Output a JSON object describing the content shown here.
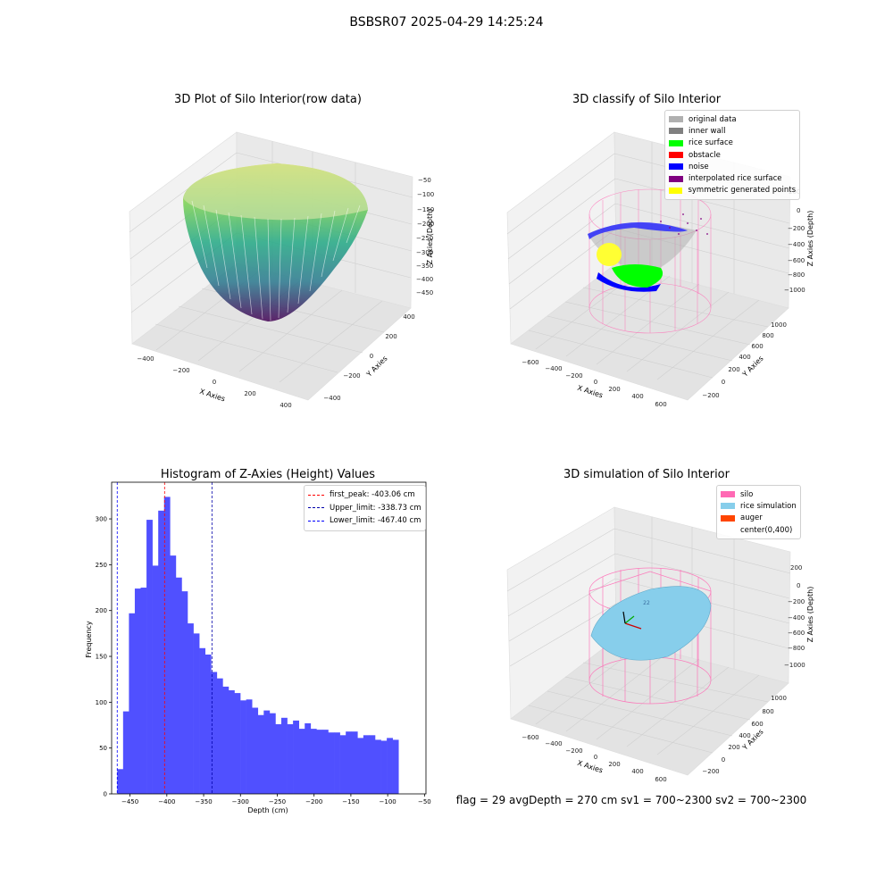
{
  "suptitle": "BSBSR07 2025-04-29 14:25:24",
  "panels": {
    "raw": {
      "title": "3D Plot of Silo Interior(row data)",
      "xlabel": "X Axies",
      "ylabel": "Y Axies",
      "zlabel": "Z Axies (Depth)",
      "xticks": [
        "−400",
        "−200",
        "0",
        "200",
        "400"
      ],
      "yticks": [
        "400",
        "200",
        "0",
        "−200",
        "−400"
      ],
      "zticks": [
        "−50",
        "−100",
        "−150",
        "−200",
        "−250",
        "−300",
        "−350",
        "−400",
        "−450"
      ]
    },
    "classify": {
      "title": "3D classify of Silo Interior",
      "xlabel": "X Axies",
      "ylabel": "Y Axies",
      "zlabel": "Z Axies (Depth)",
      "xticks": [
        "−600",
        "−400",
        "−200",
        "0",
        "200",
        "400",
        "600"
      ],
      "yticks": [
        "1000",
        "800",
        "600",
        "400",
        "200",
        "0",
        "−200"
      ],
      "zticks": [
        "200",
        "0",
        "−200",
        "−400",
        "−600",
        "−800",
        "−1000"
      ],
      "legend": [
        {
          "label": "original data",
          "color": "#b0b0b0"
        },
        {
          "label": "inner wall",
          "color": "#808080"
        },
        {
          "label": "rice surface",
          "color": "#00ff00"
        },
        {
          "label": "obstacle",
          "color": "#ff0000"
        },
        {
          "label": "noise",
          "color": "#0000ff"
        },
        {
          "label": "interpolated rice surface",
          "color": "#800080"
        },
        {
          "label": "symmetric generated points",
          "color": "#ffff00"
        }
      ]
    },
    "simulation": {
      "title": "3D simulation of Silo Interior",
      "xlabel": "X Axies",
      "ylabel": "Y Axies",
      "zlabel": "Z Axies (Depth)",
      "xticks": [
        "−600",
        "−400",
        "−200",
        "0",
        "200",
        "400",
        "600"
      ],
      "yticks": [
        "1000",
        "800",
        "600",
        "400",
        "200",
        "0",
        "−200"
      ],
      "zticks": [
        "200",
        "0",
        "−200",
        "−400",
        "−600",
        "−800",
        "−1000"
      ],
      "legend": [
        {
          "label": "silo",
          "color": "#ff69b4"
        },
        {
          "label": "rice simulation",
          "color": "#87ceeb"
        },
        {
          "label": "auger",
          "color": "#ff4500"
        },
        {
          "label": "center(0,400)",
          "color": "#ffffff"
        }
      ],
      "surface_marker": "22"
    }
  },
  "status_text": "flag = 29  avgDepth = 270 cm  sv1 = 700~2300  sv2 = 700~2300",
  "chart_data": {
    "type": "bar",
    "title": "Histogram of Z-Axies (Height) Values",
    "xlabel": "Depth (cm)",
    "ylabel": "Frequency",
    "xlim": [
      -475,
      -48
    ],
    "ylim": [
      0,
      340
    ],
    "xticks": [
      -450,
      -400,
      -350,
      -300,
      -250,
      -200,
      -150,
      -100,
      -50
    ],
    "xtick_labels": [
      "−450",
      "−400",
      "−350",
      "−300",
      "−250",
      "−200",
      "−150",
      "−100",
      "−50"
    ],
    "yticks": [
      0,
      50,
      100,
      150,
      200,
      250,
      300
    ],
    "bar_color": "#5050ff",
    "bin_start": -467.4,
    "bin_width": 7.96,
    "values": [
      27,
      90,
      197,
      224,
      225,
      299,
      249,
      309,
      324,
      260,
      236,
      221,
      186,
      175,
      159,
      152,
      133,
      126,
      117,
      113,
      110,
      102,
      103,
      94,
      86,
      91,
      88,
      76,
      83,
      76,
      80,
      71,
      77,
      71,
      70,
      70,
      67,
      67,
      64,
      68,
      68,
      61,
      64,
      64,
      59,
      58,
      61,
      59
    ],
    "lines": [
      {
        "label": "first_peak: -403.06 cm",
        "x": -403.06,
        "color": "#ff0000"
      },
      {
        "label": "Upper_limit: -338.73 cm",
        "x": -338.73,
        "color": "#0000aa"
      },
      {
        "label": "Lower_limit: -467.40 cm",
        "x": -467.4,
        "color": "#0000ff"
      }
    ]
  }
}
